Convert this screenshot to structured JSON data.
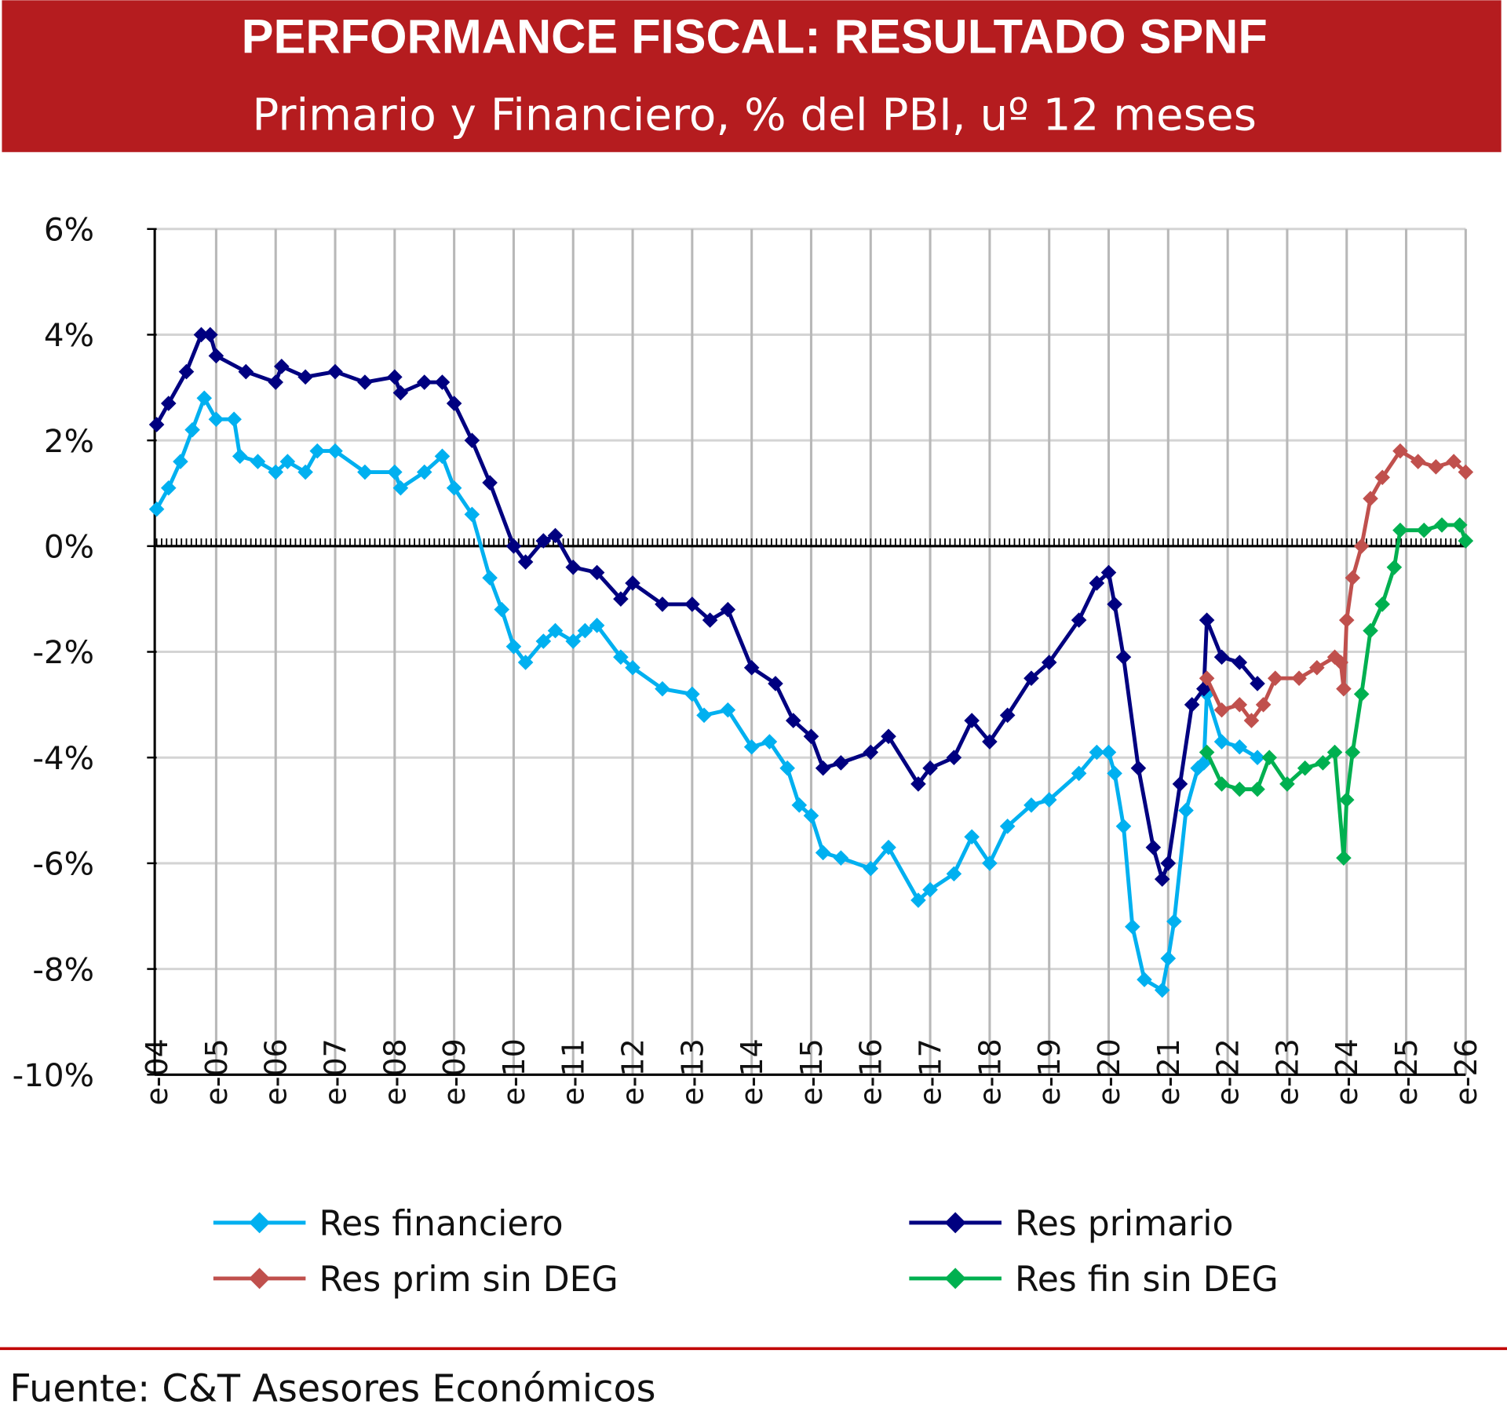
{
  "header": {
    "title": "PERFORMANCE FISCAL: RESULTADO SPNF",
    "subtitle": "Primario y Financiero, % del PBI, uº 12 meses",
    "background_color": "#B51C1F"
  },
  "footer": {
    "source": "Fuente: C&T Asesores Económicos",
    "rule_color": "#C00000"
  },
  "chart_data": {
    "type": "line",
    "title": "PERFORMANCE FISCAL: RESULTADO SPNF",
    "subtitle": "Primario y Financiero, % del PBI, uº 12 meses",
    "xlabel": "",
    "ylabel": "",
    "xlim": [
      2004,
      2026
    ],
    "ylim": [
      -10,
      6
    ],
    "y_ticks": [
      6,
      4,
      2,
      0,
      -2,
      -4,
      -6,
      -8,
      -10
    ],
    "y_tick_labels": [
      "6%",
      "4%",
      "2%",
      "0%",
      "-2%",
      "-4%",
      "-6%",
      "-8%",
      "-10%"
    ],
    "x_ticks": [
      2004,
      2005,
      2006,
      2007,
      2008,
      2009,
      2010,
      2011,
      2012,
      2013,
      2014,
      2015,
      2016,
      2017,
      2018,
      2019,
      2020,
      2021,
      2022,
      2023,
      2024,
      2025,
      2026
    ],
    "x_tick_labels": [
      "e-04",
      "e-05",
      "e-06",
      "e-07",
      "e-08",
      "e-09",
      "e-10",
      "e-11",
      "e-12",
      "e-13",
      "e-14",
      "e-15",
      "e-16",
      "e-17",
      "e-18",
      "e-19",
      "e-20",
      "e-21",
      "e-22",
      "e-23",
      "e-24",
      "e-25",
      "e-26"
    ],
    "grid": true,
    "legend_position": "bottom",
    "series": [
      {
        "name": "Res financiero",
        "color": "#00B0F0",
        "marker": "diamond",
        "x": [
          2004.0,
          2004.2,
          2004.4,
          2004.6,
          2004.8,
          2005.0,
          2005.3,
          2005.4,
          2005.7,
          2006.0,
          2006.2,
          2006.5,
          2006.7,
          2007.0,
          2007.5,
          2008.0,
          2008.1,
          2008.5,
          2008.8,
          2009.0,
          2009.3,
          2009.6,
          2009.8,
          2010.0,
          2010.2,
          2010.5,
          2010.7,
          2011.0,
          2011.2,
          2011.4,
          2011.8,
          2012.0,
          2012.5,
          2013.0,
          2013.2,
          2013.6,
          2014.0,
          2014.3,
          2014.6,
          2014.8,
          2015.0,
          2015.2,
          2015.5,
          2016.0,
          2016.3,
          2016.8,
          2017.0,
          2017.4,
          2017.7,
          2018.0,
          2018.3,
          2018.7,
          2019.0,
          2019.5,
          2019.8,
          2020.0,
          2020.1,
          2020.25,
          2020.4,
          2020.6,
          2020.9,
          2021.0,
          2021.1,
          2021.3,
          2021.5,
          2021.6,
          2021.65,
          2021.9,
          2022.2,
          2022.5
        ],
        "values": [
          0.7,
          1.1,
          1.6,
          2.2,
          2.8,
          2.4,
          2.4,
          1.7,
          1.6,
          1.4,
          1.6,
          1.4,
          1.8,
          1.8,
          1.4,
          1.4,
          1.1,
          1.4,
          1.7,
          1.1,
          0.6,
          -0.6,
          -1.2,
          -1.9,
          -2.2,
          -1.8,
          -1.6,
          -1.8,
          -1.6,
          -1.5,
          -2.1,
          -2.3,
          -2.7,
          -2.8,
          -3.2,
          -3.1,
          -3.8,
          -3.7,
          -4.2,
          -4.9,
          -5.1,
          -5.8,
          -5.9,
          -6.1,
          -5.7,
          -6.7,
          -6.5,
          -6.2,
          -5.5,
          -6.0,
          -5.3,
          -4.9,
          -4.8,
          -4.3,
          -3.9,
          -3.9,
          -4.3,
          -5.3,
          -7.2,
          -8.2,
          -8.4,
          -7.8,
          -7.1,
          -5.0,
          -4.2,
          -4.1,
          -2.8,
          -3.7,
          -3.8,
          -4.0
        ]
      },
      {
        "name": "Res primario",
        "color": "#000080",
        "marker": "diamond",
        "x": [
          2004.0,
          2004.2,
          2004.5,
          2004.75,
          2004.9,
          2005.0,
          2005.5,
          2006.0,
          2006.1,
          2006.5,
          2007.0,
          2007.5,
          2008.0,
          2008.1,
          2008.5,
          2008.8,
          2009.0,
          2009.3,
          2009.6,
          2010.0,
          2010.2,
          2010.5,
          2010.7,
          2011.0,
          2011.4,
          2011.8,
          2012.0,
          2012.5,
          2013.0,
          2013.3,
          2013.6,
          2014.0,
          2014.4,
          2014.7,
          2015.0,
          2015.2,
          2015.5,
          2016.0,
          2016.3,
          2016.8,
          2017.0,
          2017.4,
          2017.7,
          2018.0,
          2018.3,
          2018.7,
          2019.0,
          2019.5,
          2019.8,
          2020.0,
          2020.1,
          2020.25,
          2020.5,
          2020.75,
          2020.9,
          2021.0,
          2021.2,
          2021.4,
          2021.6,
          2021.65,
          2021.9,
          2022.2,
          2022.5
        ],
        "values": [
          2.3,
          2.7,
          3.3,
          4.0,
          4.0,
          3.6,
          3.3,
          3.1,
          3.4,
          3.2,
          3.3,
          3.1,
          3.2,
          2.9,
          3.1,
          3.1,
          2.7,
          2.0,
          1.2,
          0.0,
          -0.3,
          0.1,
          0.2,
          -0.4,
          -0.5,
          -1.0,
          -0.7,
          -1.1,
          -1.1,
          -1.4,
          -1.2,
          -2.3,
          -2.6,
          -3.3,
          -3.6,
          -4.2,
          -4.1,
          -3.9,
          -3.6,
          -4.5,
          -4.2,
          -4.0,
          -3.3,
          -3.7,
          -3.2,
          -2.5,
          -2.2,
          -1.4,
          -0.7,
          -0.5,
          -1.1,
          -2.1,
          -4.2,
          -5.7,
          -6.3,
          -6.0,
          -4.5,
          -3.0,
          -2.7,
          -1.4,
          -2.1,
          -2.2,
          -2.6
        ]
      },
      {
        "name": "Res prim sin DEG",
        "color": "#C0504D",
        "marker": "diamond",
        "x": [
          2021.65,
          2021.9,
          2022.2,
          2022.4,
          2022.6,
          2022.8,
          2023.2,
          2023.5,
          2023.8,
          2023.9,
          2023.95,
          2024.0,
          2024.1,
          2024.25,
          2024.4,
          2024.6,
          2024.9,
          2025.2,
          2025.5,
          2025.8,
          2026.0
        ],
        "values": [
          -2.5,
          -3.1,
          -3.0,
          -3.3,
          -3.0,
          -2.5,
          -2.5,
          -2.3,
          -2.1,
          -2.2,
          -2.7,
          -1.4,
          -0.6,
          0.0,
          0.9,
          1.3,
          1.8,
          1.6,
          1.5,
          1.6,
          1.4
        ]
      },
      {
        "name": "Res fin sin DEG",
        "color": "#00B050",
        "marker": "diamond",
        "x": [
          2021.65,
          2021.9,
          2022.2,
          2022.5,
          2022.7,
          2023.0,
          2023.3,
          2023.6,
          2023.8,
          2023.95,
          2024.0,
          2024.1,
          2024.25,
          2024.4,
          2024.6,
          2024.8,
          2024.9,
          2025.3,
          2025.6,
          2025.9,
          2026.0
        ],
        "values": [
          -3.9,
          -4.5,
          -4.6,
          -4.6,
          -4.0,
          -4.5,
          -4.2,
          -4.1,
          -3.9,
          -5.9,
          -4.8,
          -3.9,
          -2.8,
          -1.6,
          -1.1,
          -0.4,
          0.3,
          0.3,
          0.4,
          0.4,
          0.1
        ]
      }
    ]
  }
}
